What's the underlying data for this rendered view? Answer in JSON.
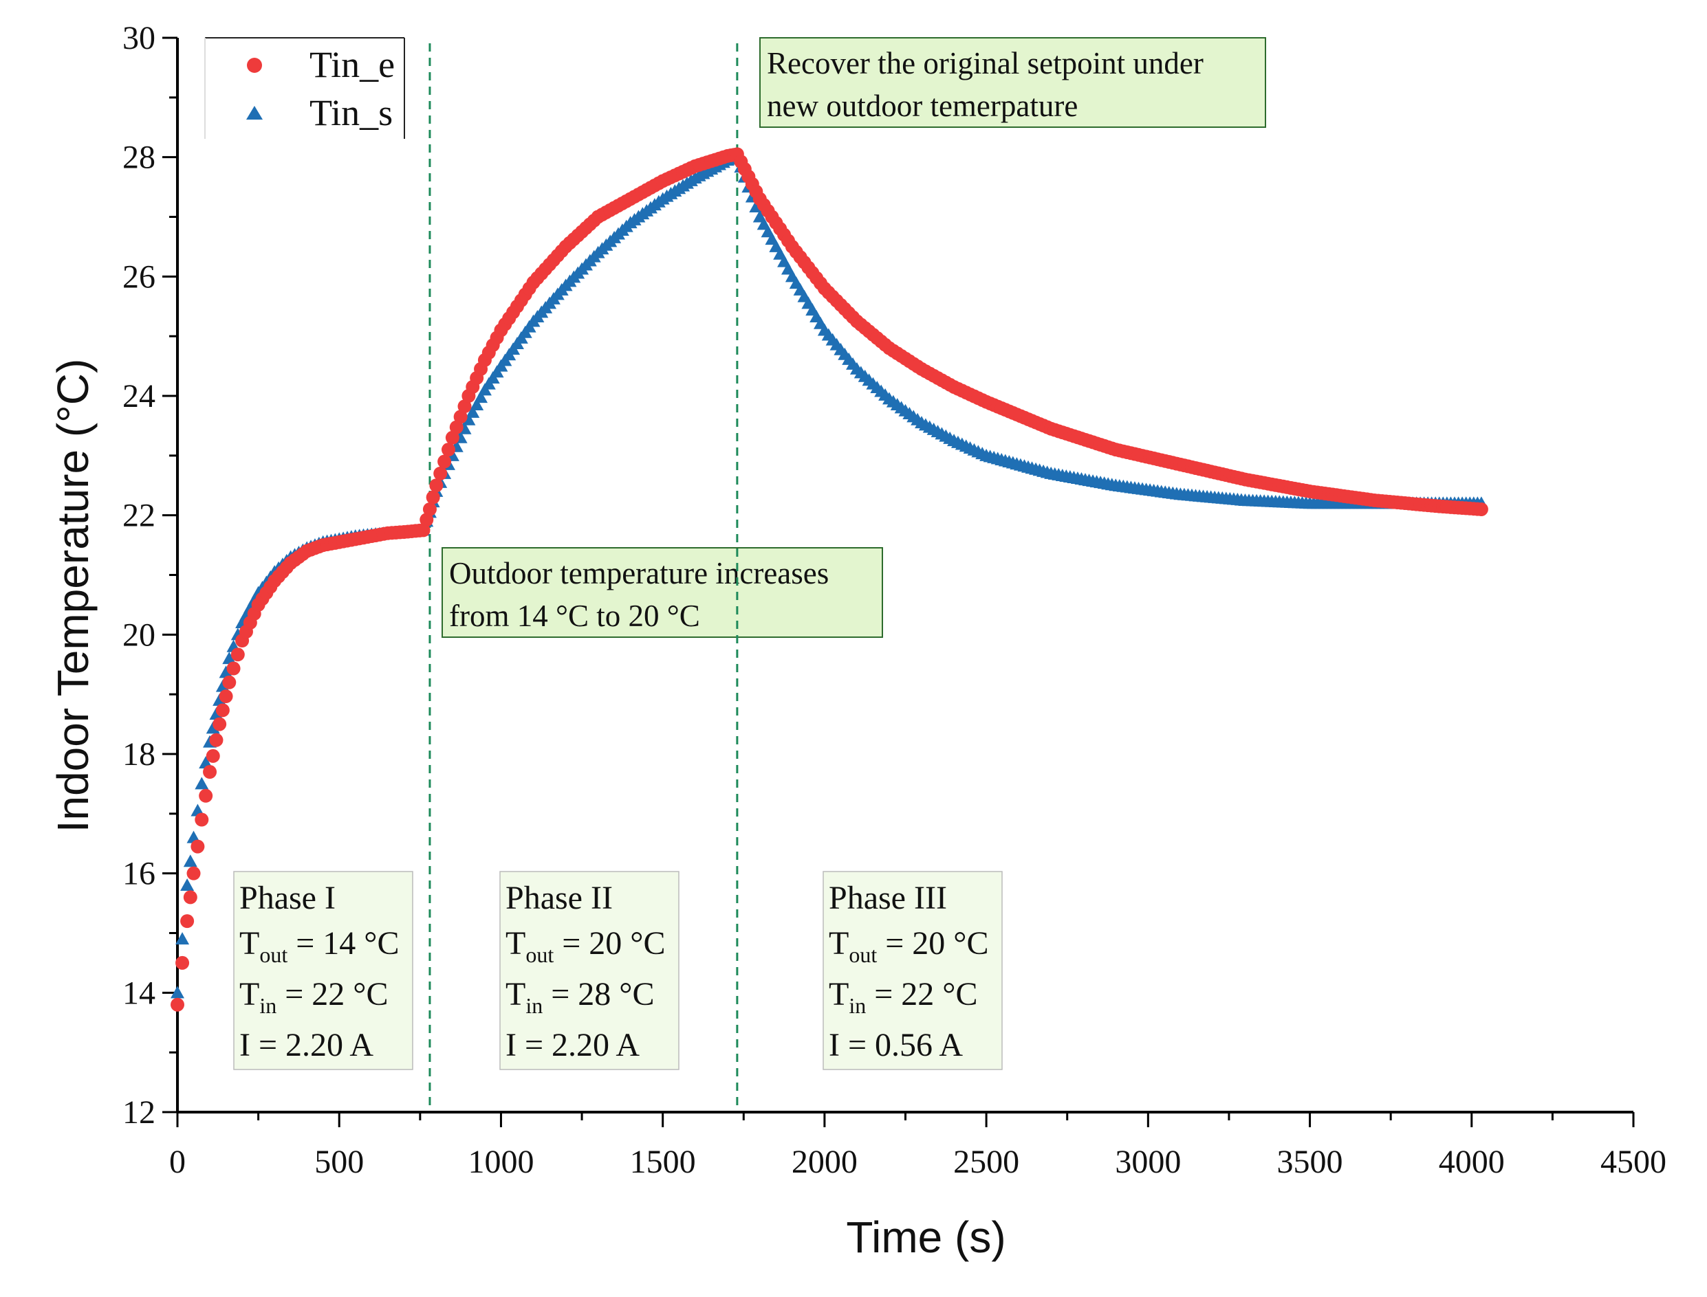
{
  "chart_data": {
    "type": "scatter",
    "title": "",
    "xlabel": "Time (s)",
    "ylabel": "Indoor Temperature (°C)",
    "xlim": [
      0,
      4500
    ],
    "ylim": [
      12,
      30
    ],
    "x_ticks": [
      0,
      500,
      1000,
      1500,
      2000,
      2500,
      3000,
      3500,
      4000,
      4500
    ],
    "y_ticks": [
      12,
      14,
      16,
      18,
      20,
      22,
      24,
      26,
      28,
      30
    ],
    "x_tick_labels": [
      "0",
      "500",
      "1000",
      "1500",
      "2000",
      "2500",
      "3000",
      "3500",
      "4000",
      "4500"
    ],
    "y_tick_labels": [
      "12",
      "14",
      "16",
      "18",
      "20",
      "22",
      "24",
      "26",
      "28",
      "30"
    ],
    "legend_position": "top-left",
    "series": [
      {
        "name": "Tin_e",
        "marker": "circle",
        "color": "#ee3b3b",
        "x": [
          0,
          15,
          30,
          50,
          75,
          100,
          130,
          160,
          200,
          250,
          300,
          350,
          400,
          450,
          500,
          550,
          600,
          650,
          700,
          760,
          780,
          800,
          850,
          900,
          950,
          1000,
          1100,
          1200,
          1300,
          1400,
          1500,
          1600,
          1700,
          1730,
          1800,
          1900,
          2000,
          2100,
          2200,
          2300,
          2400,
          2500,
          2700,
          2900,
          3100,
          3300,
          3500,
          3700,
          3900,
          4030
        ],
        "values": [
          13.8,
          14.5,
          15.2,
          16.0,
          16.9,
          17.7,
          18.5,
          19.2,
          19.9,
          20.5,
          20.9,
          21.2,
          21.4,
          21.5,
          21.55,
          21.6,
          21.65,
          21.7,
          21.72,
          21.75,
          22.1,
          22.5,
          23.3,
          24.0,
          24.6,
          25.1,
          25.9,
          26.5,
          27.0,
          27.3,
          27.6,
          27.85,
          28.02,
          28.05,
          27.3,
          26.5,
          25.8,
          25.25,
          24.8,
          24.45,
          24.15,
          23.9,
          23.45,
          23.1,
          22.85,
          22.6,
          22.4,
          22.25,
          22.15,
          22.1
        ]
      },
      {
        "name": "Tin_s",
        "marker": "triangle",
        "color": "#1f6fb4",
        "x": [
          0,
          15,
          30,
          50,
          75,
          100,
          130,
          160,
          200,
          250,
          300,
          350,
          400,
          450,
          500,
          550,
          600,
          650,
          700,
          760,
          780,
          800,
          850,
          900,
          950,
          1000,
          1100,
          1200,
          1300,
          1400,
          1500,
          1600,
          1700,
          1730,
          1800,
          1900,
          2000,
          2100,
          2200,
          2300,
          2400,
          2500,
          2700,
          2900,
          3100,
          3300,
          3500,
          3700,
          3900,
          4030
        ],
        "values": [
          14.0,
          14.9,
          15.8,
          16.6,
          17.5,
          18.2,
          18.9,
          19.6,
          20.2,
          20.7,
          21.05,
          21.3,
          21.45,
          21.55,
          21.6,
          21.65,
          21.68,
          21.7,
          21.72,
          21.75,
          22.05,
          22.4,
          23.0,
          23.6,
          24.1,
          24.5,
          25.25,
          25.85,
          26.4,
          26.9,
          27.3,
          27.65,
          27.95,
          28.0,
          27.0,
          26.0,
          25.1,
          24.45,
          23.95,
          23.55,
          23.25,
          23.0,
          22.7,
          22.5,
          22.35,
          22.25,
          22.2,
          22.2,
          22.2,
          22.2
        ]
      }
    ],
    "vertical_lines": [
      780,
      1730
    ],
    "annotations": [
      {
        "name": "outdoor-change",
        "lines": [
          "Outdoor temperature increases",
          "from 14 °C to 20 °C"
        ]
      },
      {
        "name": "recover-setpoint",
        "lines": [
          "Recover the original setpoint under",
          "new outdoor temerpature"
        ]
      }
    ],
    "phases": [
      {
        "title": "Phase I",
        "tout_label": "T",
        "tout_sub": "out",
        "tout_value": "= 14 °C",
        "tin_label": "T",
        "tin_sub": "in",
        "tin_value": "= 22  °C",
        "current": "I = 2.20 A"
      },
      {
        "title": "Phase II",
        "tout_label": "T",
        "tout_sub": "out",
        "tout_value": "= 20 °C",
        "tin_label": "T",
        "tin_sub": "in",
        "tin_value": "= 28  °C",
        "current": "I = 2.20 A"
      },
      {
        "title": "Phase III",
        "tout_label": "T",
        "tout_sub": "out",
        "tout_value": "= 20 °C",
        "tin_label": "T",
        "tin_sub": "in",
        "tin_value": "= 22  °C",
        "current": "I = 0.56 A"
      }
    ],
    "colors": {
      "annotation_fill": "#e3f5cf",
      "annotation_border": "#2d6b2d",
      "phase_fill": "#f2fae9",
      "guide_line": "#1e8a5a",
      "axis": "#000000"
    }
  }
}
